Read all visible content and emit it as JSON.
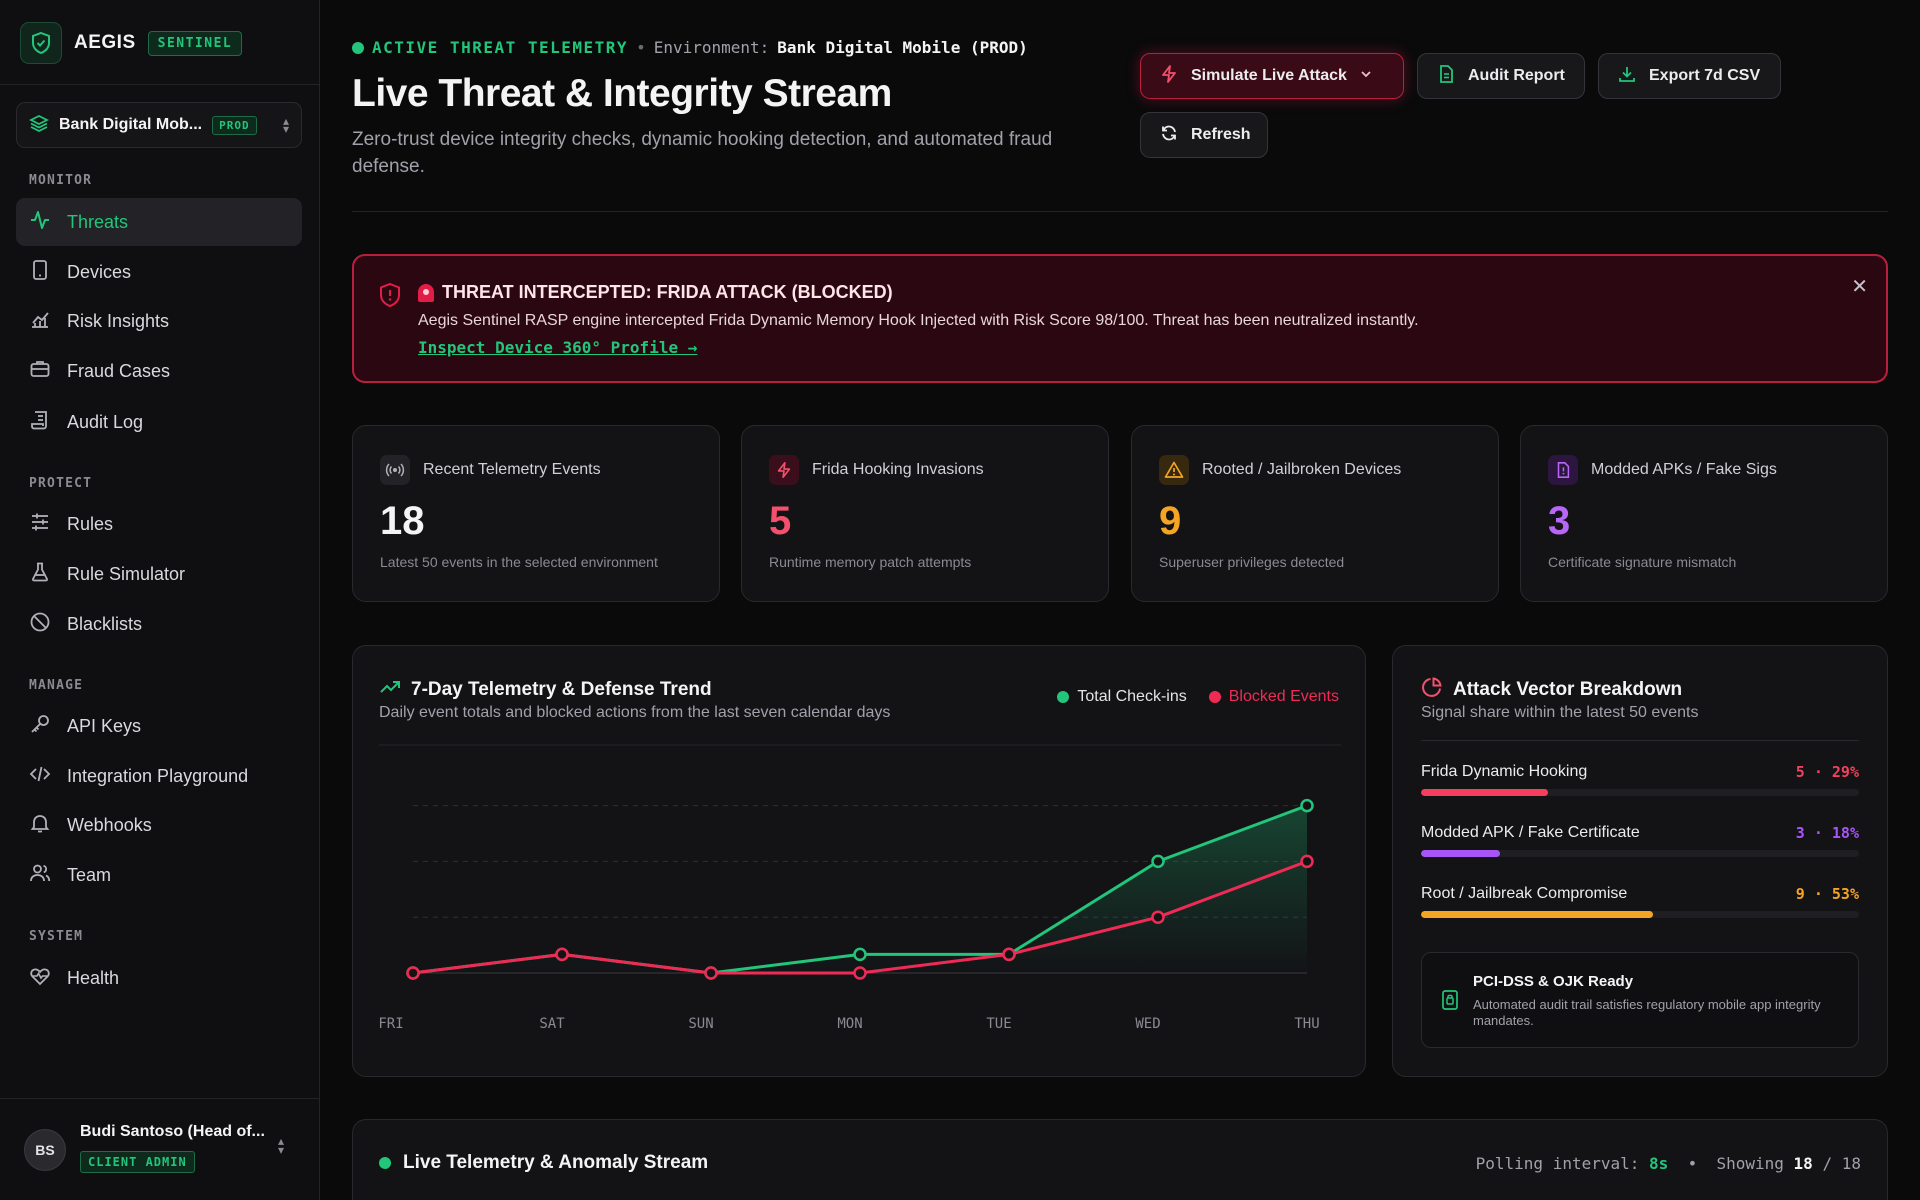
{
  "brand": {
    "name": "AEGIS",
    "tag": "SENTINEL"
  },
  "environment": {
    "name": "Bank Digital Mob...",
    "badge": "PROD"
  },
  "sidebar": {
    "sections": [
      {
        "title": "MONITOR",
        "items": [
          {
            "label": "Threats",
            "icon": "activity-icon",
            "active": true
          },
          {
            "label": "Devices",
            "icon": "smartphone-icon"
          },
          {
            "label": "Risk Insights",
            "icon": "chart-icon"
          },
          {
            "label": "Fraud Cases",
            "icon": "briefcase-icon"
          },
          {
            "label": "Audit Log",
            "icon": "scroll-icon"
          }
        ]
      },
      {
        "title": "PROTECT",
        "items": [
          {
            "label": "Rules",
            "icon": "sliders-icon"
          },
          {
            "label": "Rule Simulator",
            "icon": "flask-icon"
          },
          {
            "label": "Blacklists",
            "icon": "ban-icon"
          }
        ]
      },
      {
        "title": "MANAGE",
        "items": [
          {
            "label": "API Keys",
            "icon": "key-icon"
          },
          {
            "label": "Integration Playground",
            "icon": "code-icon"
          },
          {
            "label": "Webhooks",
            "icon": "bell-icon"
          },
          {
            "label": "Team",
            "icon": "users-icon"
          }
        ]
      },
      {
        "title": "SYSTEM",
        "items": [
          {
            "label": "Health",
            "icon": "heart-pulse-icon"
          }
        ]
      }
    ]
  },
  "user": {
    "initials": "BS",
    "name": "Budi Santoso (Head of...",
    "role": "CLIENT ADMIN"
  },
  "header": {
    "status_label": "ACTIVE THREAT TELEMETRY",
    "status_sep": "•",
    "env_key": "Environment:",
    "env_value": "Bank Digital Mobile (PROD)",
    "title": "Live Threat & Integrity Stream",
    "subtitle": "Zero-trust device integrity checks, dynamic hooking detection, and automated fraud defense."
  },
  "actions": {
    "simulate": "Simulate Live Attack",
    "audit": "Audit Report",
    "export": "Export 7d CSV",
    "refresh": "Refresh"
  },
  "alert": {
    "title": "THREAT INTERCEPTED: FRIDA ATTACK (BLOCKED)",
    "text": "Aegis Sentinel RASP engine intercepted Frida Dynamic Memory Hook Injected with Risk Score 98/100. Threat has been neutralized instantly.",
    "link": "Inspect Device 360° Profile →"
  },
  "stats": [
    {
      "label": "Recent Telemetry Events",
      "value": "18",
      "desc": "Latest 50 events in the selected environment",
      "color": "#f4f4f5",
      "icon": "broadcast-icon"
    },
    {
      "label": "Frida Hooking Invasions",
      "value": "5",
      "desc": "Runtime memory patch attempts",
      "color": "#f4506e",
      "icon": "zap-icon"
    },
    {
      "label": "Rooted / Jailbroken Devices",
      "value": "9",
      "desc": "Superuser privileges detected",
      "color": "#f5a524",
      "icon": "warning-icon"
    },
    {
      "label": "Modded APKs / Fake Sigs",
      "value": "3",
      "desc": "Certificate signature mismatch",
      "color": "#b866f5",
      "icon": "file-alert-icon"
    }
  ],
  "trend": {
    "title": "7-Day Telemetry & Defense Trend",
    "subtitle": "Daily event totals and blocked actions from the last seven calendar days",
    "legend_total": "Total Check-ins",
    "legend_blocked": "Blocked Events"
  },
  "chart_data": {
    "type": "line",
    "title": "7-Day Telemetry & Defense Trend",
    "categories": [
      "FRI",
      "SAT",
      "SUN",
      "MON",
      "TUE",
      "WED",
      "THU"
    ],
    "series": [
      {
        "name": "Total Check-ins",
        "color": "#22c57a",
        "values": [
          0,
          1,
          0,
          1,
          1,
          6,
          9
        ]
      },
      {
        "name": "Blocked Events",
        "color": "#ef2b55",
        "values": [
          0,
          1,
          0,
          0,
          1,
          3,
          6
        ]
      }
    ],
    "ylim": [
      0,
      10
    ],
    "grid": true,
    "legend": "top-right"
  },
  "vectors": {
    "title": "Attack Vector Breakdown",
    "subtitle": "Signal share within the latest 50 events",
    "items": [
      {
        "name": "Frida Dynamic Hooking",
        "value": "5 · 29%",
        "share": 0.29,
        "color": "#f43f5e"
      },
      {
        "name": "Modded APK / Fake Certificate",
        "value": "3 · 18%",
        "share": 0.18,
        "color": "#a855f7"
      },
      {
        "name": "Root / Jailbreak Compromise",
        "value": "9 · 53%",
        "share": 0.53,
        "color": "#f5a524"
      }
    ],
    "compliance_title": "PCI-DSS & OJK Ready",
    "compliance_text": "Automated audit trail satisfies regulatory mobile app integrity mandates."
  },
  "stream": {
    "title": "Live Telemetry & Anomaly Stream",
    "poll_label": "Polling interval:",
    "poll_value": "8s",
    "bullet": "•",
    "showing_label": "Showing",
    "showing_value": "18",
    "showing_sep": "/",
    "showing_total": "18"
  }
}
